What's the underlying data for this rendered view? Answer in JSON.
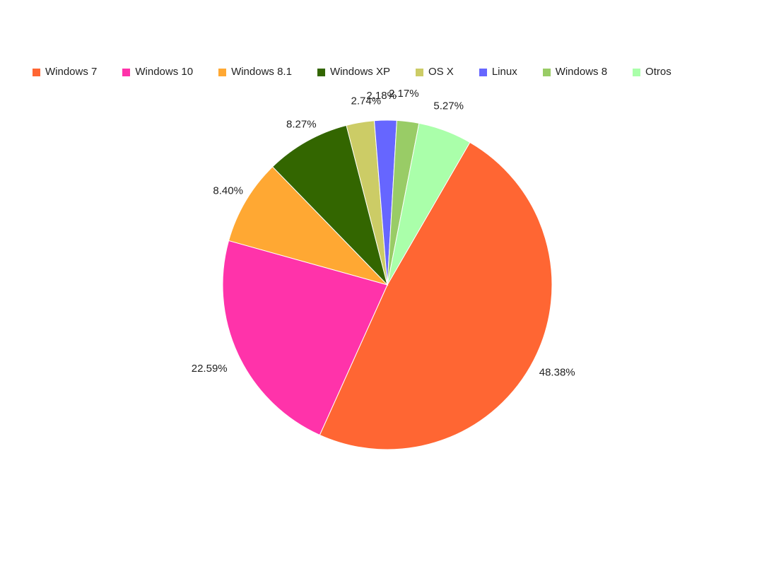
{
  "chart_data": {
    "type": "pie",
    "title": "",
    "legend_position": "top-left",
    "series": [
      {
        "categories": [
          "Windows 7",
          "Windows 10",
          "Windows 8.1",
          "Windows XP",
          "OS X",
          "Linux",
          "Windows 8",
          "Otros"
        ],
        "values": [
          48.38,
          22.59,
          8.4,
          8.27,
          2.74,
          2.18,
          2.17,
          5.27
        ],
        "labels": [
          "48.38%",
          "22.59%",
          "8.40%",
          "8.27%",
          "2.74%",
          "2.18%",
          "2.17%",
          "5.27%"
        ],
        "colors": [
          "#ff6633",
          "#ff33aa",
          "#ffa833",
          "#336600",
          "#cccc66",
          "#6666ff",
          "#99cc66",
          "#aaffaa"
        ]
      }
    ]
  }
}
